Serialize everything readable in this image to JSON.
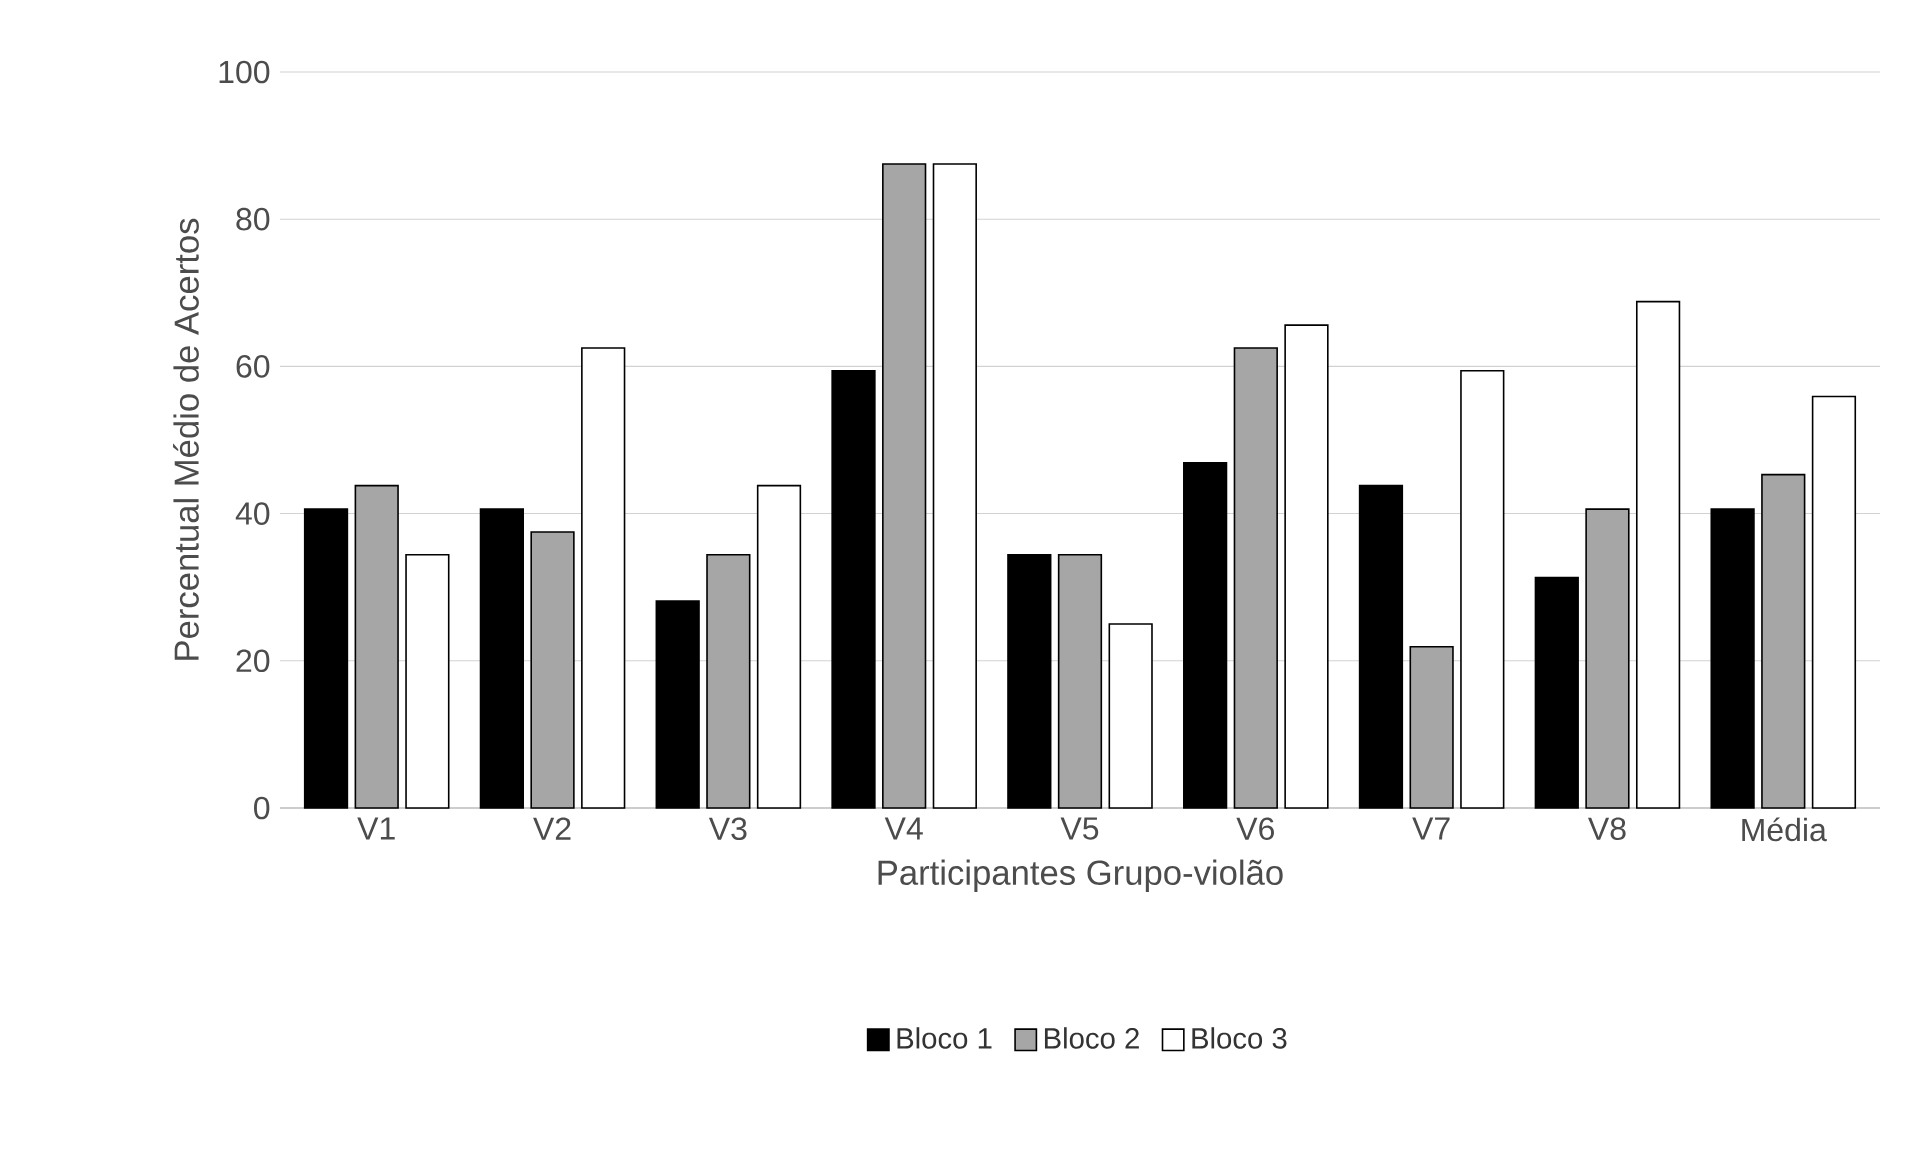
{
  "chart_data": {
    "type": "bar",
    "xlabel": "Participantes Grupo-violão",
    "ylabel": "Percentual Médio de Acertos",
    "categories": [
      "V1",
      "V2",
      "V3",
      "V4",
      "V5",
      "V6",
      "V7",
      "V8",
      "Média"
    ],
    "series": [
      {
        "name": "Bloco 1",
        "color": "#000000",
        "values": [
          40.6,
          40.6,
          28.1,
          59.4,
          34.4,
          46.9,
          43.8,
          31.3,
          40.6
        ]
      },
      {
        "name": "Bloco 2",
        "color": "#a6a6a6",
        "values": [
          43.8,
          37.5,
          34.4,
          87.5,
          34.4,
          62.5,
          21.9,
          40.6,
          45.3
        ]
      },
      {
        "name": "Bloco 3",
        "color": "#ffffff",
        "values": [
          34.4,
          62.5,
          43.8,
          87.5,
          25.0,
          65.6,
          59.4,
          68.8,
          55.9
        ]
      }
    ],
    "ylim": [
      0,
      100
    ],
    "yticks": [
      0,
      20,
      40,
      60,
      80,
      100
    ],
    "grid": "y",
    "legend": "bottom"
  }
}
